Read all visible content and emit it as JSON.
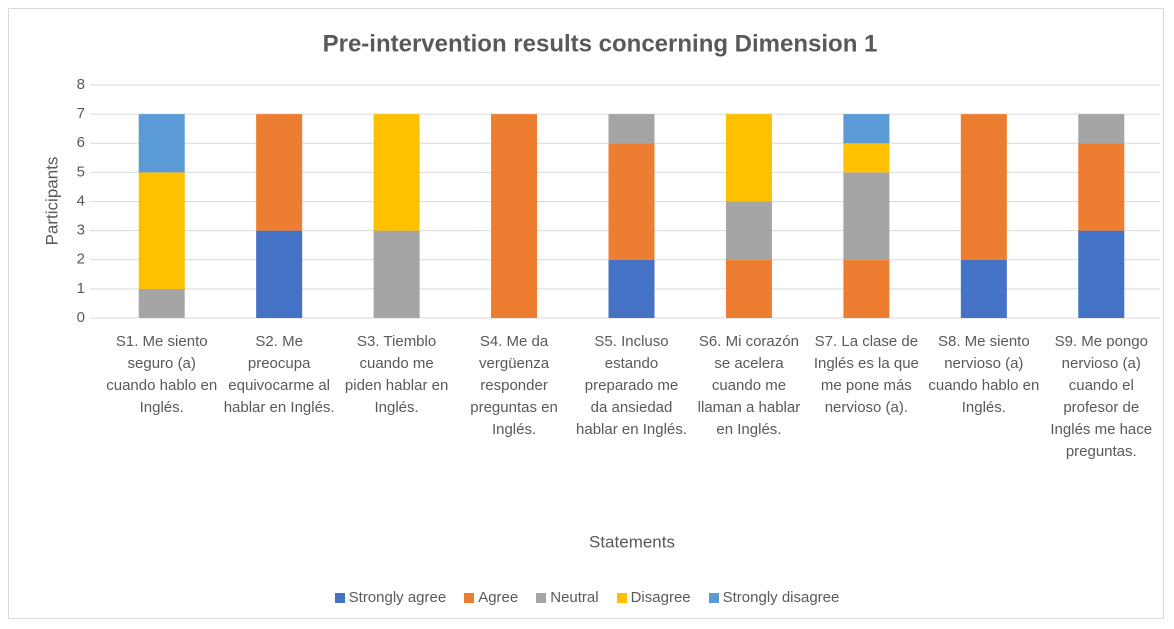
{
  "chart_data": {
    "type": "stacked_bar",
    "title": "Pre-intervention results concerning Dimension 1",
    "x_label": "Statements",
    "y_label": "Participants",
    "categories": [
      "S1. Me siento seguro (a) cuando hablo en Inglés.",
      "S2. Me preocupa equivocarme al hablar en Inglés.",
      "S3. Tiemblo cuando me piden hablar en Inglés.",
      "S4. Me da vergüenza responder preguntas en Inglés.",
      "S5. Incluso estando preparado me da ansiedad hablar en Inglés.",
      "S6. Mi corazón se acelera cuando me llaman a hablar en Inglés.",
      "S7. La clase de Inglés es la que me pone más nervioso (a).",
      "S8. Me siento nervioso (a) cuando hablo en Inglés.",
      "S9. Me pongo nervioso (a) cuando el profesor de Inglés me hace preguntas."
    ],
    "series": [
      {
        "name": "Strongly agree",
        "color": "#4472c4",
        "values": [
          0,
          3,
          0,
          0,
          2,
          0,
          0,
          2,
          3
        ]
      },
      {
        "name": "Agree",
        "color": "#ed7d31",
        "values": [
          0,
          4,
          0,
          7,
          4,
          2,
          2,
          5,
          3
        ]
      },
      {
        "name": "Neutral",
        "color": "#a5a5a5",
        "values": [
          1,
          0,
          3,
          0,
          1,
          2,
          3,
          0,
          1
        ]
      },
      {
        "name": "Disagree",
        "color": "#ffc000",
        "values": [
          4,
          0,
          4,
          0,
          0,
          3,
          1,
          0,
          0
        ]
      },
      {
        "name": "Strongly disagree",
        "color": "#5b9bd5",
        "values": [
          2,
          0,
          0,
          0,
          0,
          0,
          1,
          0,
          0
        ]
      }
    ],
    "ylim": [
      0,
      8
    ],
    "yticks": [
      0,
      1,
      2,
      3,
      4,
      5,
      6,
      7,
      8
    ],
    "grid": true,
    "legend": "bottom"
  }
}
